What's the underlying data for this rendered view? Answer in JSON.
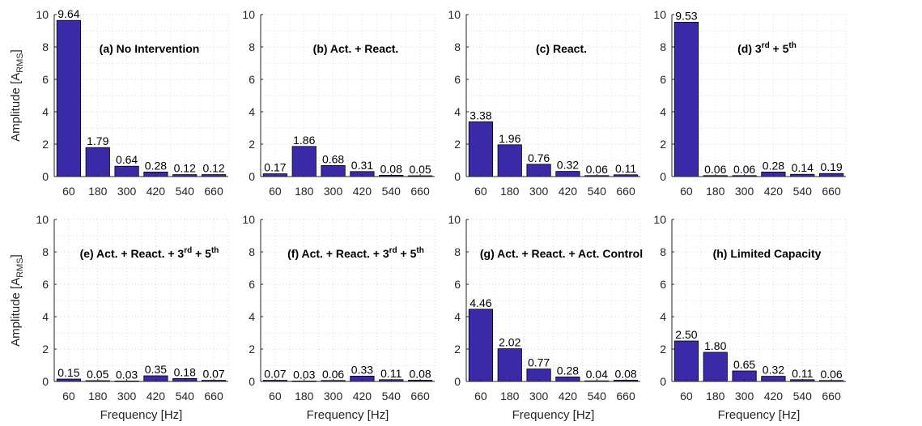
{
  "colors": {
    "bar": "#3b2aa8",
    "bar_edge": "#000000",
    "grid": "#d0d0d0",
    "axis": "#262626"
  },
  "chart_data": [
    {
      "type": "bar",
      "title": "(a) No Intervention",
      "categories": [
        "60",
        "180",
        "300",
        "420",
        "540",
        "660"
      ],
      "values": [
        9.64,
        1.79,
        0.64,
        0.28,
        0.12,
        0.12
      ],
      "value_labels": [
        "9.64",
        "1.79",
        "0.64",
        "0.28",
        "0.12",
        "0.12"
      ],
      "ylabel": "Amplitude [A",
      "ylabel_sub": "RMS",
      "ylabel_end": "]",
      "xlabel": "",
      "ylim": [
        0,
        10
      ],
      "yticks": [
        "0",
        "2",
        "4",
        "6",
        "8",
        "10"
      ],
      "grid": true
    },
    {
      "type": "bar",
      "title": "(b) Act. + React.",
      "categories": [
        "60",
        "180",
        "300",
        "420",
        "540",
        "660"
      ],
      "values": [
        0.17,
        1.86,
        0.68,
        0.31,
        0.08,
        0.05
      ],
      "value_labels": [
        "0.17",
        "1.86",
        "0.68",
        "0.31",
        "0.08",
        "0.05"
      ],
      "ylabel": "",
      "ylabel_sub": "",
      "ylabel_end": "",
      "xlabel": "",
      "ylim": [
        0,
        10
      ],
      "yticks": [
        "0",
        "2",
        "4",
        "6",
        "8",
        "10"
      ],
      "grid": true
    },
    {
      "type": "bar",
      "title": "(c) React.",
      "categories": [
        "60",
        "180",
        "300",
        "420",
        "540",
        "660"
      ],
      "values": [
        3.38,
        1.96,
        0.76,
        0.32,
        0.06,
        0.11
      ],
      "value_labels": [
        "3.38",
        "1.96",
        "0.76",
        "0.32",
        "0.06",
        "0.11"
      ],
      "ylabel": "",
      "ylabel_sub": "",
      "ylabel_end": "",
      "xlabel": "",
      "ylim": [
        0,
        10
      ],
      "yticks": [
        "0",
        "2",
        "4",
        "6",
        "8",
        "10"
      ],
      "grid": true
    },
    {
      "type": "bar",
      "title": "(d) 3",
      "title_sups": [
        "rd",
        " + 5",
        "th"
      ],
      "categories": [
        "60",
        "180",
        "300",
        "420",
        "540",
        "660"
      ],
      "values": [
        9.53,
        0.06,
        0.06,
        0.28,
        0.14,
        0.19
      ],
      "value_labels": [
        "9.53",
        "0.06",
        "0.06",
        "0.28",
        "0.14",
        "0.19"
      ],
      "ylabel": "",
      "ylabel_sub": "",
      "ylabel_end": "",
      "xlabel": "",
      "ylim": [
        0,
        10
      ],
      "yticks": [
        "0",
        "2",
        "4",
        "6",
        "8",
        "10"
      ],
      "grid": true
    },
    {
      "type": "bar",
      "title": "(e) Act. + React. + 3",
      "title_sups": [
        "rd",
        " + 5",
        "th"
      ],
      "categories": [
        "60",
        "180",
        "300",
        "420",
        "540",
        "660"
      ],
      "values": [
        0.15,
        0.05,
        0.03,
        0.35,
        0.18,
        0.07
      ],
      "value_labels": [
        "0.15",
        "0.05",
        "0.03",
        "0.35",
        "0.18",
        "0.07"
      ],
      "ylabel": "Amplitude [A",
      "ylabel_sub": "RMS",
      "ylabel_end": "]",
      "xlabel": "Frequency [Hz]",
      "ylim": [
        0,
        10
      ],
      "yticks": [
        "0",
        "2",
        "4",
        "6",
        "8",
        "10"
      ],
      "grid": true
    },
    {
      "type": "bar",
      "title": "(f) Act. + React. + 3",
      "title_sups": [
        "rd",
        " + 5",
        "th"
      ],
      "categories": [
        "60",
        "180",
        "300",
        "420",
        "540",
        "660"
      ],
      "values": [
        0.07,
        0.03,
        0.06,
        0.33,
        0.11,
        0.08
      ],
      "value_labels": [
        "0.07",
        "0.03",
        "0.06",
        "0.33",
        "0.11",
        "0.08"
      ],
      "ylabel": "",
      "ylabel_sub": "",
      "ylabel_end": "",
      "xlabel": "Frequency [Hz]",
      "ylim": [
        0,
        10
      ],
      "yticks": [
        "0",
        "2",
        "4",
        "6",
        "8",
        "10"
      ],
      "grid": true
    },
    {
      "type": "bar",
      "title": "(g) Act. + React. + Act. Control",
      "categories": [
        "60",
        "180",
        "300",
        "420",
        "540",
        "660"
      ],
      "values": [
        4.46,
        2.02,
        0.77,
        0.28,
        0.04,
        0.08
      ],
      "value_labels": [
        "4.46",
        "2.02",
        "0.77",
        "0.28",
        "0.04",
        "0.08"
      ],
      "ylabel": "",
      "ylabel_sub": "",
      "ylabel_end": "",
      "xlabel": "Frequency [Hz]",
      "ylim": [
        0,
        10
      ],
      "yticks": [
        "0",
        "2",
        "4",
        "6",
        "8",
        "10"
      ],
      "grid": true
    },
    {
      "type": "bar",
      "title": "(h) Limited Capacity",
      "categories": [
        "60",
        "180",
        "300",
        "420",
        "540",
        "660"
      ],
      "values": [
        2.5,
        1.8,
        0.65,
        0.32,
        0.11,
        0.06
      ],
      "value_labels": [
        "2.50",
        "1.80",
        "0.65",
        "0.32",
        "0.11",
        "0.06"
      ],
      "ylabel": "",
      "ylabel_sub": "",
      "ylabel_end": "",
      "xlabel": "Frequency [Hz]",
      "ylim": [
        0,
        10
      ],
      "yticks": [
        "0",
        "2",
        "4",
        "6",
        "8",
        "10"
      ],
      "grid": true
    }
  ]
}
